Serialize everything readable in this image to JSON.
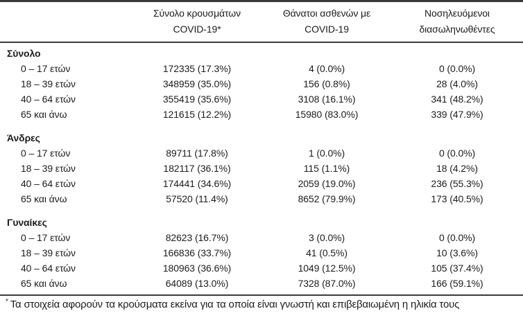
{
  "table": {
    "headers": [
      {
        "line1": "Σύνολο κρουσμάτων",
        "line2": "COVID-19*"
      },
      {
        "line1": "Θάνατοι ασθενών με",
        "line2": "COVID-19"
      },
      {
        "line1": "Νοσηλευόμενοι",
        "line2": "διασωληνωθέντες"
      }
    ],
    "groups": [
      {
        "label": "Σύνολο",
        "rows": [
          {
            "age": "0 – 17 ετών",
            "cases": "172335 (17.3%)",
            "deaths": "4 (0.0%)",
            "intubated": "0 (0.0%)"
          },
          {
            "age": "18 – 39 ετών",
            "cases": "348959 (35.0%)",
            "deaths": "156 (0.8%)",
            "intubated": "28 (4.0%)"
          },
          {
            "age": "40 – 64 ετών",
            "cases": "355419 (35.6%)",
            "deaths": "3108 (16.1%)",
            "intubated": "341 (48.2%)"
          },
          {
            "age": "65 και άνω",
            "cases": "121615 (12.2%)",
            "deaths": "15980 (83.0%)",
            "intubated": "339 (47.9%)"
          }
        ]
      },
      {
        "label": "Άνδρες",
        "rows": [
          {
            "age": "0 – 17 ετών",
            "cases": "89711 (17.8%)",
            "deaths": "1 (0.0%)",
            "intubated": "0 (0.0%)"
          },
          {
            "age": "18 – 39 ετών",
            "cases": "182117 (36.1%)",
            "deaths": "115 (1.1%)",
            "intubated": "18 (4.2%)"
          },
          {
            "age": "40 – 64 ετών",
            "cases": "174441 (34.6%)",
            "deaths": "2059 (19.0%)",
            "intubated": "236 (55.3%)"
          },
          {
            "age": "65 και άνω",
            "cases": "57520 (11.4%)",
            "deaths": "8652 (79.9%)",
            "intubated": "173 (40.5%)"
          }
        ]
      },
      {
        "label": "Γυναίκες",
        "rows": [
          {
            "age": "0 – 17 ετών",
            "cases": "82623 (16.7%)",
            "deaths": "3 (0.0%)",
            "intubated": "0 (0.0%)"
          },
          {
            "age": "18 – 39 ετών",
            "cases": "166836 (33.7%)",
            "deaths": "41 (0.5%)",
            "intubated": "10 (3.6%)"
          },
          {
            "age": "40 – 64 ετών",
            "cases": "180963 (36.6%)",
            "deaths": "1049 (12.5%)",
            "intubated": "105 (37.4%)"
          },
          {
            "age": "65 και άνω",
            "cases": "64089 (13.0%)",
            "deaths": "7328 (87.0%)",
            "intubated": "166 (59.1%)"
          }
        ]
      }
    ]
  },
  "footnote": {
    "marker": "*",
    "text": "Τα στοιχεία αφορούν τα κρούσματα εκείνα για τα οποία είναι γνωστή και επιβεβαιωμένη η ηλικία τους"
  }
}
